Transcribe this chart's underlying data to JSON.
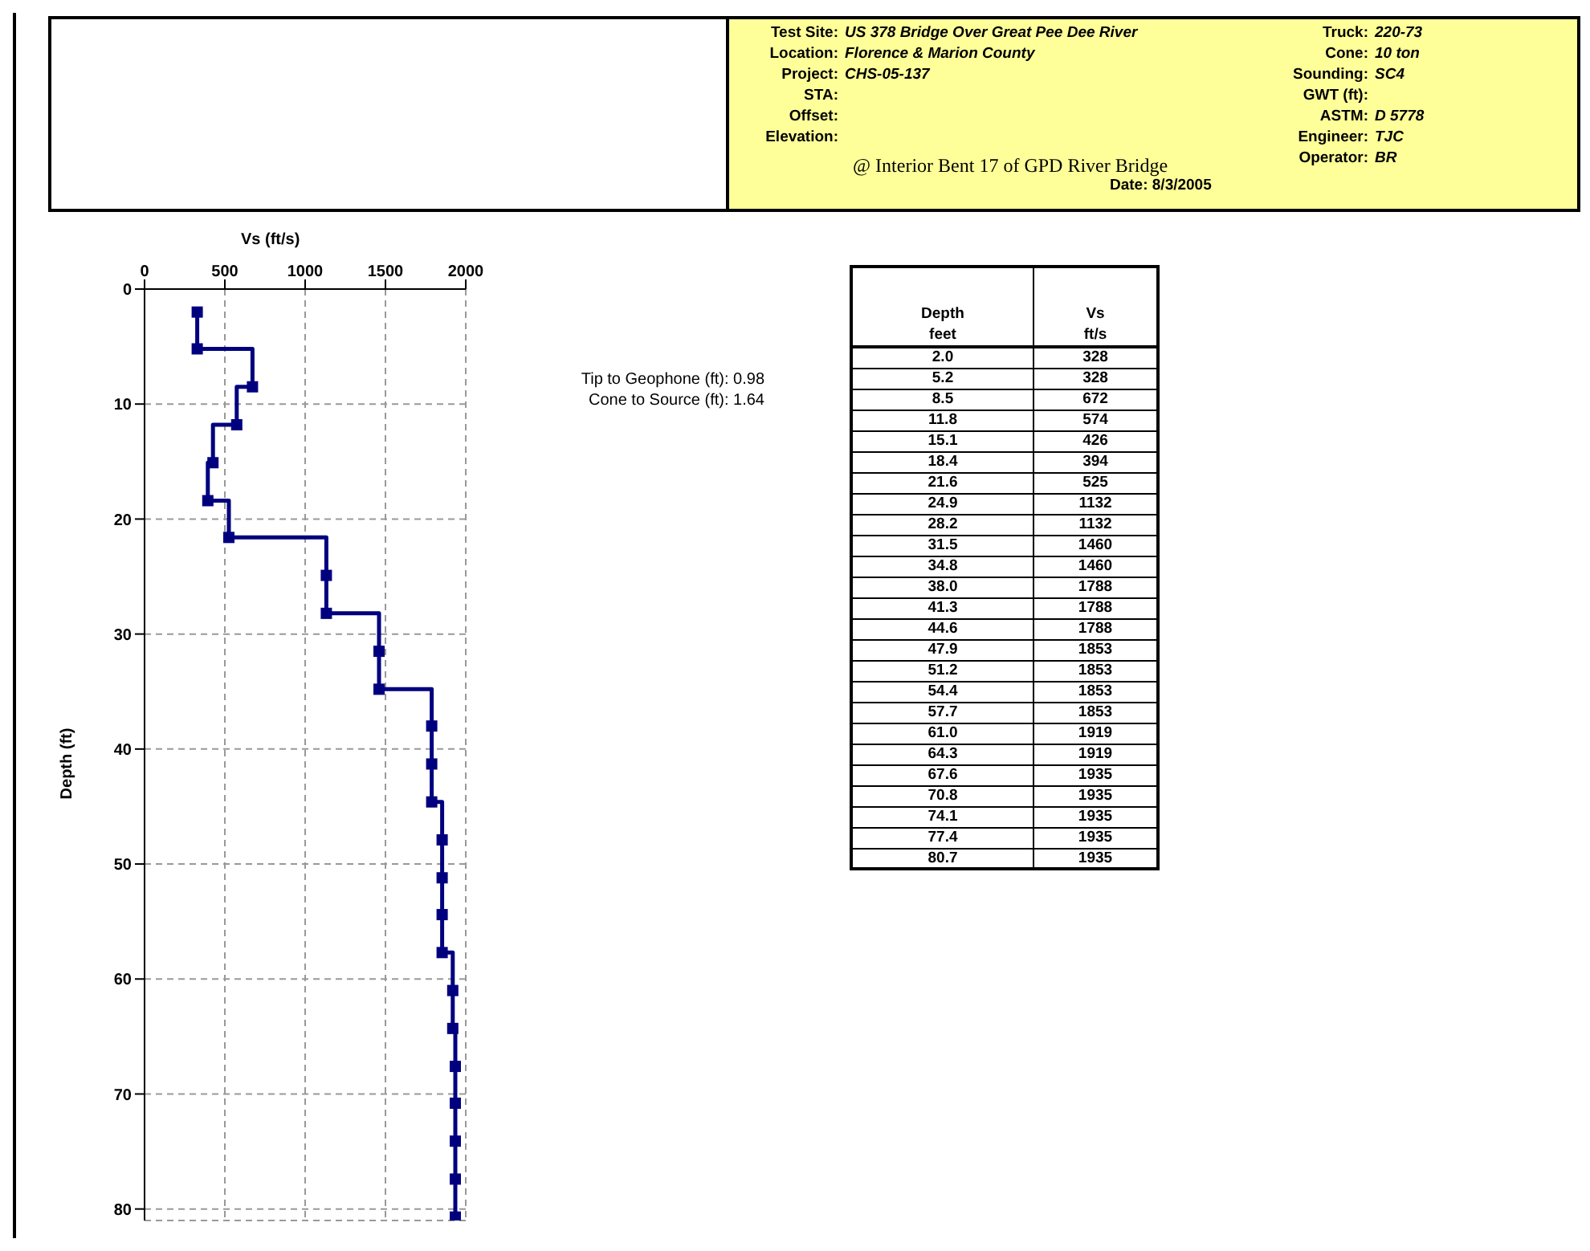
{
  "chart_data": [
    {
      "type": "step",
      "xlabel": "Vs (ft/s)",
      "ylabel": "Depth (ft)",
      "x": [
        328,
        328,
        672,
        574,
        426,
        394,
        525,
        1132,
        1132,
        1460,
        1460,
        1788,
        1788,
        1788,
        1853,
        1853,
        1853,
        1853,
        1919,
        1919,
        1935,
        1935,
        1935,
        1935,
        1935
      ],
      "values": [
        2.0,
        5.2,
        8.5,
        11.8,
        15.1,
        18.4,
        21.6,
        24.9,
        28.2,
        31.5,
        34.8,
        38.0,
        41.3,
        44.6,
        47.9,
        51.2,
        54.4,
        57.7,
        61.0,
        64.3,
        67.6,
        70.8,
        74.1,
        77.4,
        80.7
      ],
      "color": "#00007f",
      "marker": "square",
      "line_style": "solid",
      "grid": true,
      "xlim": [
        0,
        2000
      ],
      "xticks": [
        0,
        500,
        1000,
        1500,
        2000
      ],
      "ylim": [
        81,
        0
      ],
      "yticks": [
        0,
        10,
        20,
        30,
        40,
        50,
        60,
        70,
        80
      ],
      "annotations": [
        "Test Site: US 378 Bridge Over Great Pee Dee River",
        "Location: Florence & Marion County",
        "Project: CHS-05-137",
        "STA:",
        "Offset:",
        "Elevation:",
        "@ Interior Bent 17 of GPD River Bridge",
        "Date: 8/3/2005",
        "Truck: 220-73",
        "Cone: 10 ton",
        "Sounding: SC4",
        "GWT (ft):",
        "ASTM: D 5778",
        "Engineer: TJC",
        "Operator: BR",
        "Tip to Geophone (ft): 0.98",
        "Cone to Source (ft): 1.64"
      ]
    },
    {
      "type": "other",
      "data_labels": true,
      "categories": [
        "2.0",
        "5.2",
        "8.5",
        "11.8",
        "15.1",
        "18.4",
        "21.6",
        "24.9",
        "28.2",
        "31.5",
        "34.8",
        "38.0",
        "41.3",
        "44.6",
        "47.9",
        "51.2",
        "54.4",
        "57.7",
        "61.0",
        "64.3",
        "67.6",
        "70.8",
        "74.1",
        "77.4",
        "80.7"
      ],
      "values": [
        328,
        328,
        672,
        574,
        426,
        394,
        525,
        1132,
        1132,
        1460,
        1460,
        1788,
        1788,
        1788,
        1853,
        1853,
        1853,
        1853,
        1919,
        1919,
        1935,
        1935,
        1935,
        1935,
        1935
      ],
      "annotations": [
        "Depth",
        "Vs",
        "feet",
        "ft/s"
      ]
    }
  ]
}
